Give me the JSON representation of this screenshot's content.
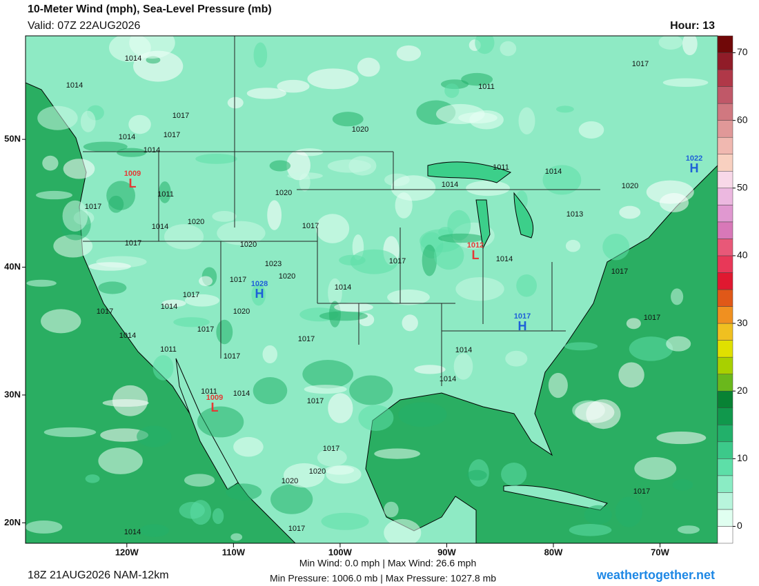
{
  "header": {
    "title": "10-Meter Wind (mph), Sea-Level Pressure (mb)",
    "valid": "Valid: 07Z 22AUG2026",
    "hour": "Hour: 13"
  },
  "map": {
    "lon_range": [
      -129.5,
      -64.6
    ],
    "lat_range": [
      18.4,
      58.1
    ],
    "lon_ticks": [
      {
        "value": -120,
        "label": "120W"
      },
      {
        "value": -110,
        "label": "110W"
      },
      {
        "value": -100,
        "label": "100W"
      },
      {
        "value": -90,
        "label": "90W"
      },
      {
        "value": -80,
        "label": "80W"
      },
      {
        "value": -70,
        "label": "70W"
      }
    ],
    "lat_ticks": [
      {
        "value": 50,
        "label": "50N"
      },
      {
        "value": 40,
        "label": "40N"
      },
      {
        "value": 30,
        "label": "30N"
      },
      {
        "value": 20,
        "label": "20N"
      }
    ],
    "pressure_labels": [
      "1014",
      "1014",
      "1017",
      "1014",
      "1017",
      "1014",
      "1020",
      "1011",
      "1017",
      "1011",
      "1014",
      "1014",
      "1020",
      "1011",
      "1020",
      "1017",
      "1014",
      "1020",
      "1017",
      "1017",
      "1020",
      "1013",
      "1023",
      "1017",
      "1014",
      "1017",
      "1017",
      "1020",
      "1014",
      "1017",
      "1014",
      "1017",
      "1020",
      "1017",
      "1017",
      "1014",
      "1011",
      "1017",
      "1014",
      "1017",
      "1014",
      "1011",
      "1014",
      "1017",
      "1017",
      "1020",
      "1020",
      "1017",
      "1017",
      "1014"
    ],
    "centers": [
      {
        "type": "L",
        "value": "1009"
      },
      {
        "type": "L",
        "value": "1012"
      },
      {
        "type": "L",
        "value": "1009"
      },
      {
        "type": "H",
        "value": "1022"
      },
      {
        "type": "H",
        "value": "1028"
      },
      {
        "type": "H",
        "value": "1017"
      }
    ]
  },
  "colorbar": {
    "lim": [
      -2.5,
      72.5
    ],
    "ticks": [
      0,
      10,
      20,
      30,
      40,
      50,
      60,
      70
    ],
    "colors": [
      "#ffffff",
      "#e0fff0",
      "#b8f5dc",
      "#8aecc4",
      "#5ddfa8",
      "#3cc98a",
      "#22b06a",
      "#10984c",
      "#088234",
      "#6ab81c",
      "#a8d000",
      "#e0e000",
      "#f0c020",
      "#f09020",
      "#e05818",
      "#e01830",
      "#e83858",
      "#e85878",
      "#d878b8",
      "#e098d0",
      "#ecb8e0",
      "#f8d8e8",
      "#f8d0c0",
      "#f0b8b0",
      "#e09898",
      "#d07880",
      "#c05868",
      "#b03848",
      "#901c28",
      "#700808"
    ]
  },
  "footer": {
    "run": "18Z 21AUG2026 NAM-12km",
    "wind_stats": "Min Wind:  0.0 mph | Max Wind: 26.6 mph",
    "pressure_stats": "Min Pressure: 1006.0 mb | Max Pressure: 1027.8 mb",
    "brand": "weathertogether.net"
  }
}
